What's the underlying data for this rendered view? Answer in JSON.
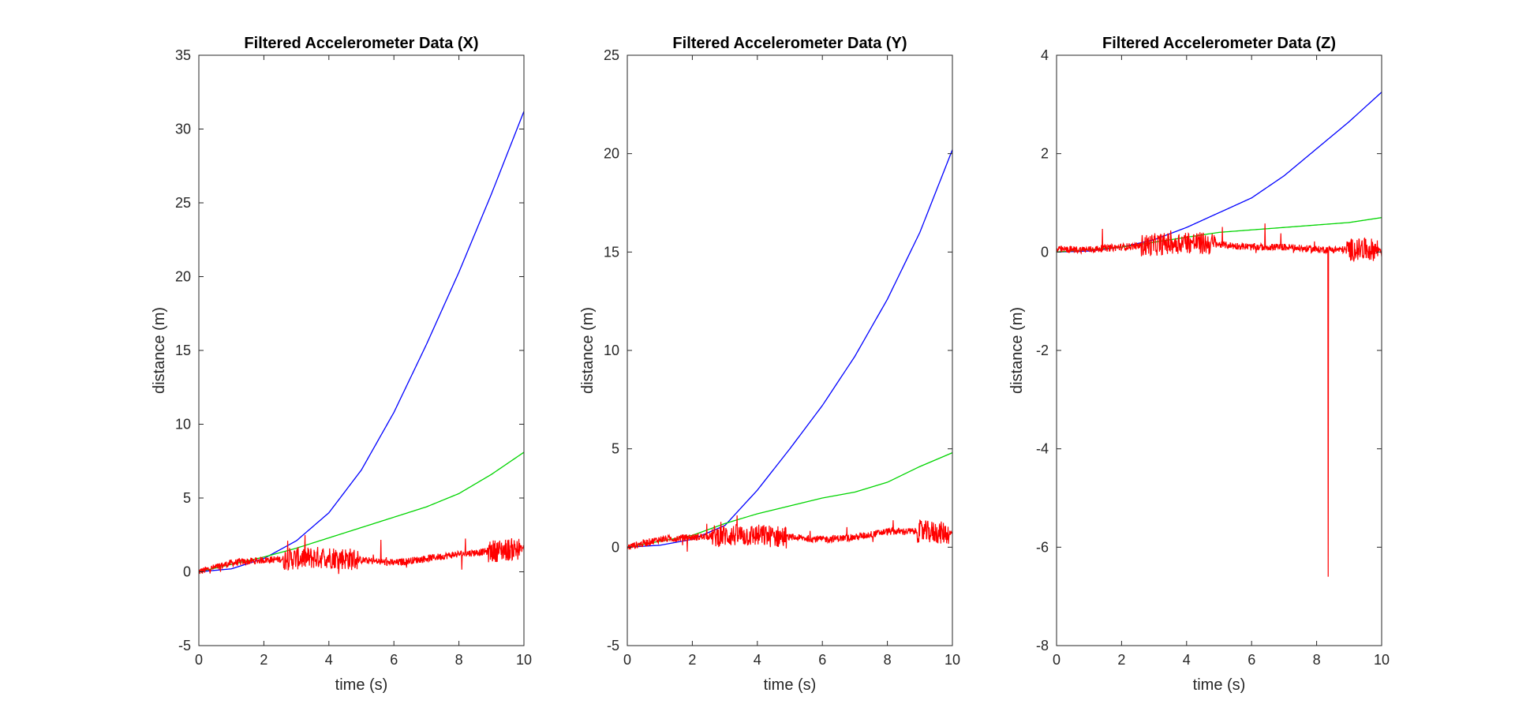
{
  "chart_data": [
    {
      "type": "line",
      "title": "Filtered Accelerometer Data (X)",
      "xlabel": "time (s)",
      "ylabel": "distance (m)",
      "xlim": [
        0,
        10
      ],
      "ylim": [
        -5,
        35
      ],
      "xticks": [
        "0",
        "2",
        "4",
        "6",
        "8",
        "10"
      ],
      "yticks": [
        "-5",
        "0",
        "5",
        "10",
        "15",
        "20",
        "25",
        "30",
        "35"
      ],
      "grid": false,
      "legend": "none",
      "series": [
        {
          "color": "#0000ff",
          "x": [
            0,
            1,
            2,
            3,
            4,
            5,
            6,
            7,
            8,
            9,
            10
          ],
          "y": [
            0,
            0.2,
            0.9,
            2.1,
            4.0,
            6.9,
            10.8,
            15.4,
            20.3,
            25.6,
            31.2
          ]
        },
        {
          "color": "#00d400",
          "x": [
            0,
            1,
            2,
            3,
            4,
            5,
            6,
            7,
            8,
            9,
            10
          ],
          "y": [
            0,
            0.5,
            1.0,
            1.6,
            2.3,
            3.0,
            3.7,
            4.4,
            5.3,
            6.6,
            8.1
          ]
        },
        {
          "color": "#ff0000",
          "noisy": true,
          "x": [
            0,
            1,
            2,
            3,
            4,
            5,
            6,
            7,
            8,
            9,
            10
          ],
          "y": [
            0,
            0.6,
            0.8,
            0.9,
            1.0,
            0.8,
            0.6,
            0.9,
            1.2,
            1.4,
            1.6
          ]
        }
      ]
    },
    {
      "type": "line",
      "title": "Filtered Accelerometer Data (Y)",
      "xlabel": "time (s)",
      "ylabel": "distance (m)",
      "xlim": [
        0,
        10
      ],
      "ylim": [
        -5,
        25
      ],
      "xticks": [
        "0",
        "2",
        "4",
        "6",
        "8",
        "10"
      ],
      "yticks": [
        "-5",
        "0",
        "5",
        "10",
        "15",
        "20",
        "25"
      ],
      "grid": false,
      "legend": "none",
      "series": [
        {
          "color": "#0000ff",
          "x": [
            0,
            1,
            2,
            3,
            4,
            5,
            6,
            7,
            8,
            9,
            10
          ],
          "y": [
            0,
            0.1,
            0.4,
            1.1,
            2.9,
            5.0,
            7.2,
            9.7,
            12.6,
            16.0,
            20.2
          ]
        },
        {
          "color": "#00d400",
          "x": [
            0,
            1,
            2,
            3,
            4,
            5,
            6,
            7,
            8,
            9,
            10
          ],
          "y": [
            0,
            0.3,
            0.6,
            1.2,
            1.7,
            2.1,
            2.5,
            2.8,
            3.3,
            4.1,
            4.8
          ]
        },
        {
          "color": "#ff0000",
          "noisy": true,
          "x": [
            0,
            1,
            2,
            3,
            4,
            5,
            6,
            7,
            8,
            9,
            10
          ],
          "y": [
            0,
            0.4,
            0.5,
            0.6,
            0.6,
            0.5,
            0.4,
            0.5,
            0.8,
            0.8,
            0.7
          ]
        }
      ]
    },
    {
      "type": "line",
      "title": "Filtered Accelerometer Data (Z)",
      "xlabel": "time (s)",
      "ylabel": "distance (m)",
      "xlim": [
        0,
        10
      ],
      "ylim": [
        -8,
        4
      ],
      "xticks": [
        "0",
        "2",
        "4",
        "6",
        "8",
        "10"
      ],
      "yticks": [
        "-8",
        "-6",
        "-4",
        "-2",
        "0",
        "2",
        "4"
      ],
      "grid": false,
      "legend": "none",
      "series": [
        {
          "color": "#0000ff",
          "x": [
            0,
            1,
            2,
            3,
            4,
            5,
            6,
            7,
            8,
            9,
            10
          ],
          "y": [
            0,
            0.02,
            0.1,
            0.25,
            0.5,
            0.8,
            1.1,
            1.55,
            2.1,
            2.65,
            3.25
          ]
        },
        {
          "color": "#00d400",
          "x": [
            0,
            1,
            2,
            3,
            4,
            5,
            6,
            7,
            8,
            9,
            10
          ],
          "y": [
            0,
            0.05,
            0.1,
            0.2,
            0.3,
            0.4,
            0.45,
            0.5,
            0.55,
            0.6,
            0.7
          ]
        },
        {
          "color": "#ff0000",
          "noisy": true,
          "x": [
            0,
            1,
            2,
            3,
            4,
            5,
            6,
            7,
            8,
            9,
            10
          ],
          "y": [
            0.05,
            0.05,
            0.1,
            0.15,
            0.2,
            0.15,
            0.1,
            0.1,
            0.05,
            0.05,
            0.05
          ]
        }
      ]
    }
  ]
}
